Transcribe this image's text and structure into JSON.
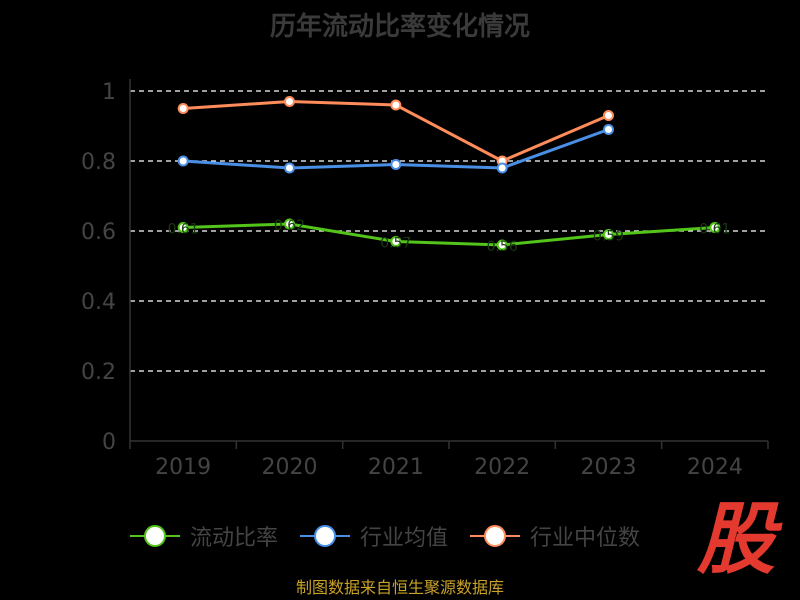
{
  "chart_data": {
    "type": "line",
    "title": "历年流动比率变化情况",
    "categories": [
      "2019",
      "2020",
      "2021",
      "2022",
      "2023",
      "2024"
    ],
    "ylim": [
      0,
      1
    ],
    "y_ticks": [
      "0",
      "0.2",
      "0.4",
      "0.6",
      "0.8",
      "1"
    ],
    "grid": true,
    "legend_position": "bottom",
    "series": [
      {
        "name": "流动比率",
        "color": "#52c41a",
        "values": [
          0.61,
          0.62,
          0.57,
          0.56,
          0.59,
          0.61
        ]
      },
      {
        "name": "行业均值",
        "color": "#4a8fe6",
        "values": [
          0.8,
          0.78,
          0.79,
          0.78,
          0.89,
          null
        ]
      },
      {
        "name": "行业中位数",
        "color": "#ff8c5a",
        "values": [
          0.95,
          0.97,
          0.96,
          0.8,
          0.93,
          null
        ]
      }
    ]
  },
  "footer": {
    "text": "制图数据来自恒生聚源数据库"
  },
  "logo": {
    "text": "股",
    "color": "#e3392f"
  }
}
